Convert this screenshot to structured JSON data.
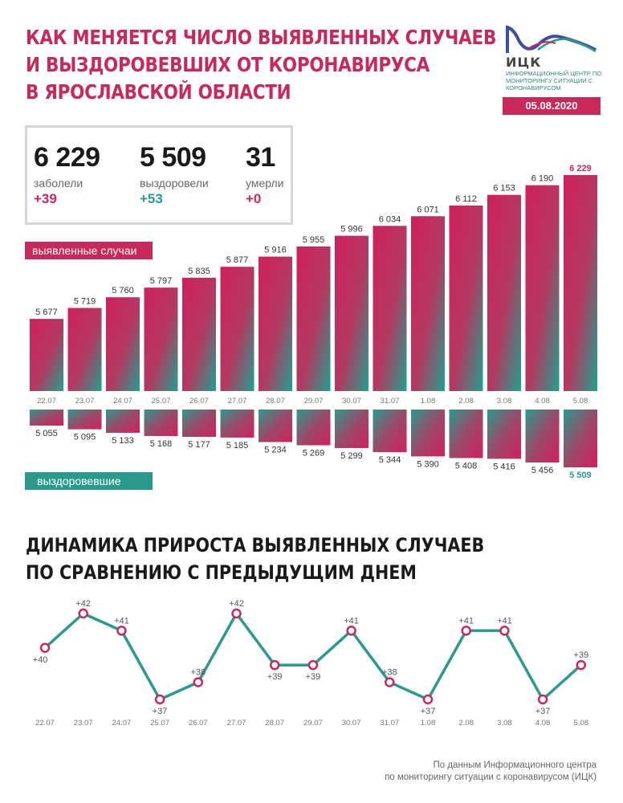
{
  "header": {
    "title_lines": [
      "КАК МЕНЯЕТСЯ ЧИСЛО ВЫЯВЛЕННЫХ СЛУЧАЕВ",
      "И ВЫЗДОРОВЕВШИХ ОТ КОРОНАВИРУСА",
      "В ЯРОСЛАВСКОЙ ОБЛАСТИ"
    ],
    "logo_name": "ИЦК",
    "logo_sub": "ИНФОРМАЦИОННЫЙ ЦЕНТР ПО МОНИТОРИНГУ СИТУАЦИИ С КОРОНАВИРУСОМ",
    "date": "05.08.2020"
  },
  "stats": [
    {
      "value": "6 229",
      "label": "заболели",
      "delta": "+39",
      "delta_color": "#c8285a"
    },
    {
      "value": "5 509",
      "label": "выздоровели",
      "delta": "+53",
      "delta_color": "#2a9a8c"
    },
    {
      "value": "31",
      "label": "умерли",
      "delta": "+0",
      "delta_color": "#c8285a"
    }
  ],
  "labels": {
    "detected": "выявленные случаи",
    "recovered": "выздоровевшие"
  },
  "colors": {
    "accent_red": "#c8285a",
    "accent_teal": "#2a9a8c",
    "line": "#2a9a8c"
  },
  "chart_data": [
    {
      "type": "bar",
      "categories": [
        "22.07",
        "23.07",
        "24.07",
        "25.07",
        "26.07",
        "27.07",
        "28.07",
        "29.07",
        "30.07",
        "31.07",
        "1.08",
        "2.08",
        "3.08",
        "4.08",
        "5.08"
      ],
      "series": [
        {
          "name": "выявленные случаи",
          "values": [
            5677,
            5719,
            5760,
            5797,
            5835,
            5877,
            5916,
            5955,
            5996,
            6034,
            6071,
            6112,
            6153,
            6190,
            6229
          ],
          "value_labels": [
            "5 677",
            "5 719",
            "5 760",
            "5 797",
            "5 835",
            "5 877",
            "5 916",
            "5 955",
            "5 996",
            "6 034",
            "6 071",
            "6 112",
            "6 153",
            "6 190",
            "6 229"
          ]
        },
        {
          "name": "выздоровевшие",
          "values": [
            5055,
            5095,
            5133,
            5168,
            5177,
            5185,
            5234,
            5269,
            5299,
            5344,
            5390,
            5408,
            5416,
            5456,
            5509
          ],
          "value_labels": [
            "5 055",
            "5 095",
            "5 133",
            "5 168",
            "5 177",
            "5 185",
            "5 234",
            "5 269",
            "5 299",
            "5 344",
            "5 390",
            "5 408",
            "5 416",
            "5 456",
            "5 509"
          ]
        }
      ]
    },
    {
      "type": "line",
      "title": "ДИНАМИКА ПРИРОСТА ВЫЯВЛЕННЫХ СЛУЧАЕВ ПО СРАВНЕНИЮ С ПРЕДЫДУЩИМ ДНЕМ",
      "title_lines": [
        "ДИНАМИКА ПРИРОСТА ВЫЯВЛЕННЫХ СЛУЧАЕВ",
        "ПО СРАВНЕНИЮ С ПРЕДЫДУЩИМ ДНЕМ"
      ],
      "categories": [
        "22.07",
        "23.07",
        "24.07",
        "25.07",
        "26.07",
        "27.07",
        "28.07",
        "29.07",
        "30.07",
        "31.07",
        "1.08",
        "2.08",
        "3.08",
        "4.08",
        "5.08"
      ],
      "values": [
        40,
        42,
        41,
        37,
        38,
        42,
        39,
        39,
        41,
        38,
        37,
        41,
        41,
        37,
        39
      ],
      "value_labels": [
        "+40",
        "+42",
        "+41",
        "+37",
        "+38",
        "+42",
        "+39",
        "+39",
        "+41",
        "+38",
        "+37",
        "+41",
        "+41",
        "+37",
        "+39"
      ]
    }
  ],
  "footer": {
    "source_lines": [
      "По данным Информационного центра",
      "по мониторингу ситуации с коронавирусом (ИЦК)"
    ]
  }
}
